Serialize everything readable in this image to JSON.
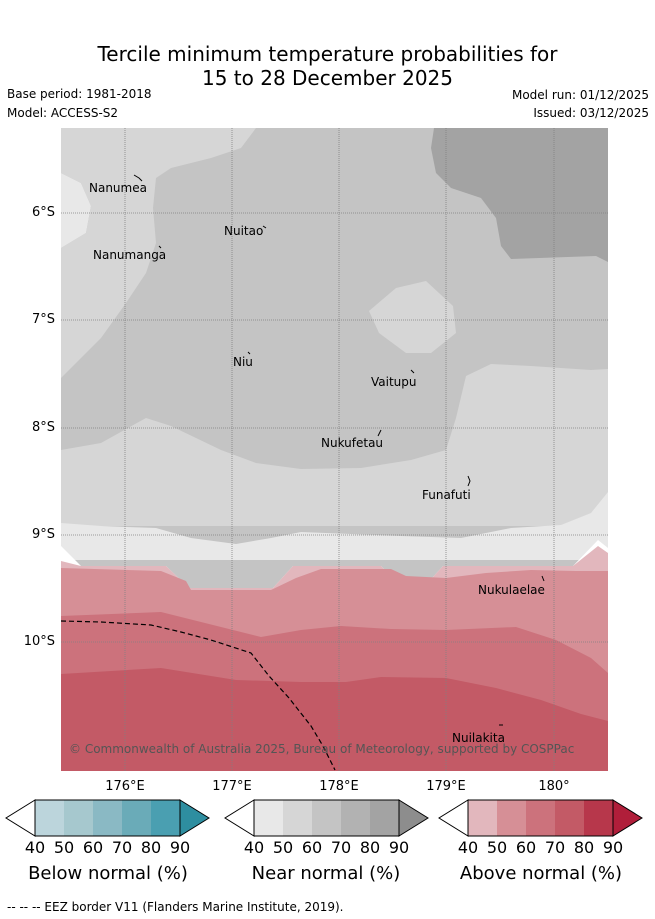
{
  "title": {
    "line1": "Tercile minimum temperature probabilities for",
    "line2": "15 to 28 December 2025"
  },
  "meta": {
    "base_period": "Base period: 1981-2018",
    "model": "Model: ACCESS-S2",
    "model_run": "Model run: 01/12/2025",
    "issued": "Issued: 03/12/2025"
  },
  "axes": {
    "lat_labels": [
      "6°S",
      "7°S",
      "8°S",
      "9°S",
      "10°S"
    ],
    "lon_labels": [
      "176°E",
      "177°E",
      "178°E",
      "179°E",
      "180°"
    ]
  },
  "islands": {
    "nanumea": "Nanumea",
    "nuitao": "Nuitao",
    "nanumanga": "Nanumanga",
    "niu": "Niu",
    "vaitupu": "Vaitupu",
    "nukufetau": "Nukufetau",
    "funafuti": "Funafuti",
    "nukulaelae": "Nukulaelae",
    "nuilakita": "Nuilakita"
  },
  "copyright": "© Commonwealth of Australia 2025, Bureau of Meteorology, supported by COSPPac",
  "legend": {
    "ticks": [
      "40",
      "50",
      "60",
      "70",
      "80",
      "90"
    ],
    "below": {
      "label": "Below normal (%)",
      "colors": [
        "#ffffff",
        "#bcd5dc",
        "#a6c8ce",
        "#8ab9c4",
        "#6aabb8",
        "#4a9fb1",
        "#2e8ea0"
      ]
    },
    "near": {
      "label": "Near normal (%)",
      "colors": [
        "#ffffff",
        "#e8e8e8",
        "#d6d6d6",
        "#c4c4c4",
        "#b2b2b2",
        "#a3a3a3",
        "#8d8d8d"
      ]
    },
    "above": {
      "label": "Above normal (%)",
      "colors": [
        "#ffffff",
        "#e2b7bd",
        "#d68f96",
        "#cc727c",
        "#c35a66",
        "#b7374b",
        "#b01e3a"
      ]
    }
  },
  "footer": "-- -- -- EEZ border V11 (Flanders Marine Institute, 2019)."
}
